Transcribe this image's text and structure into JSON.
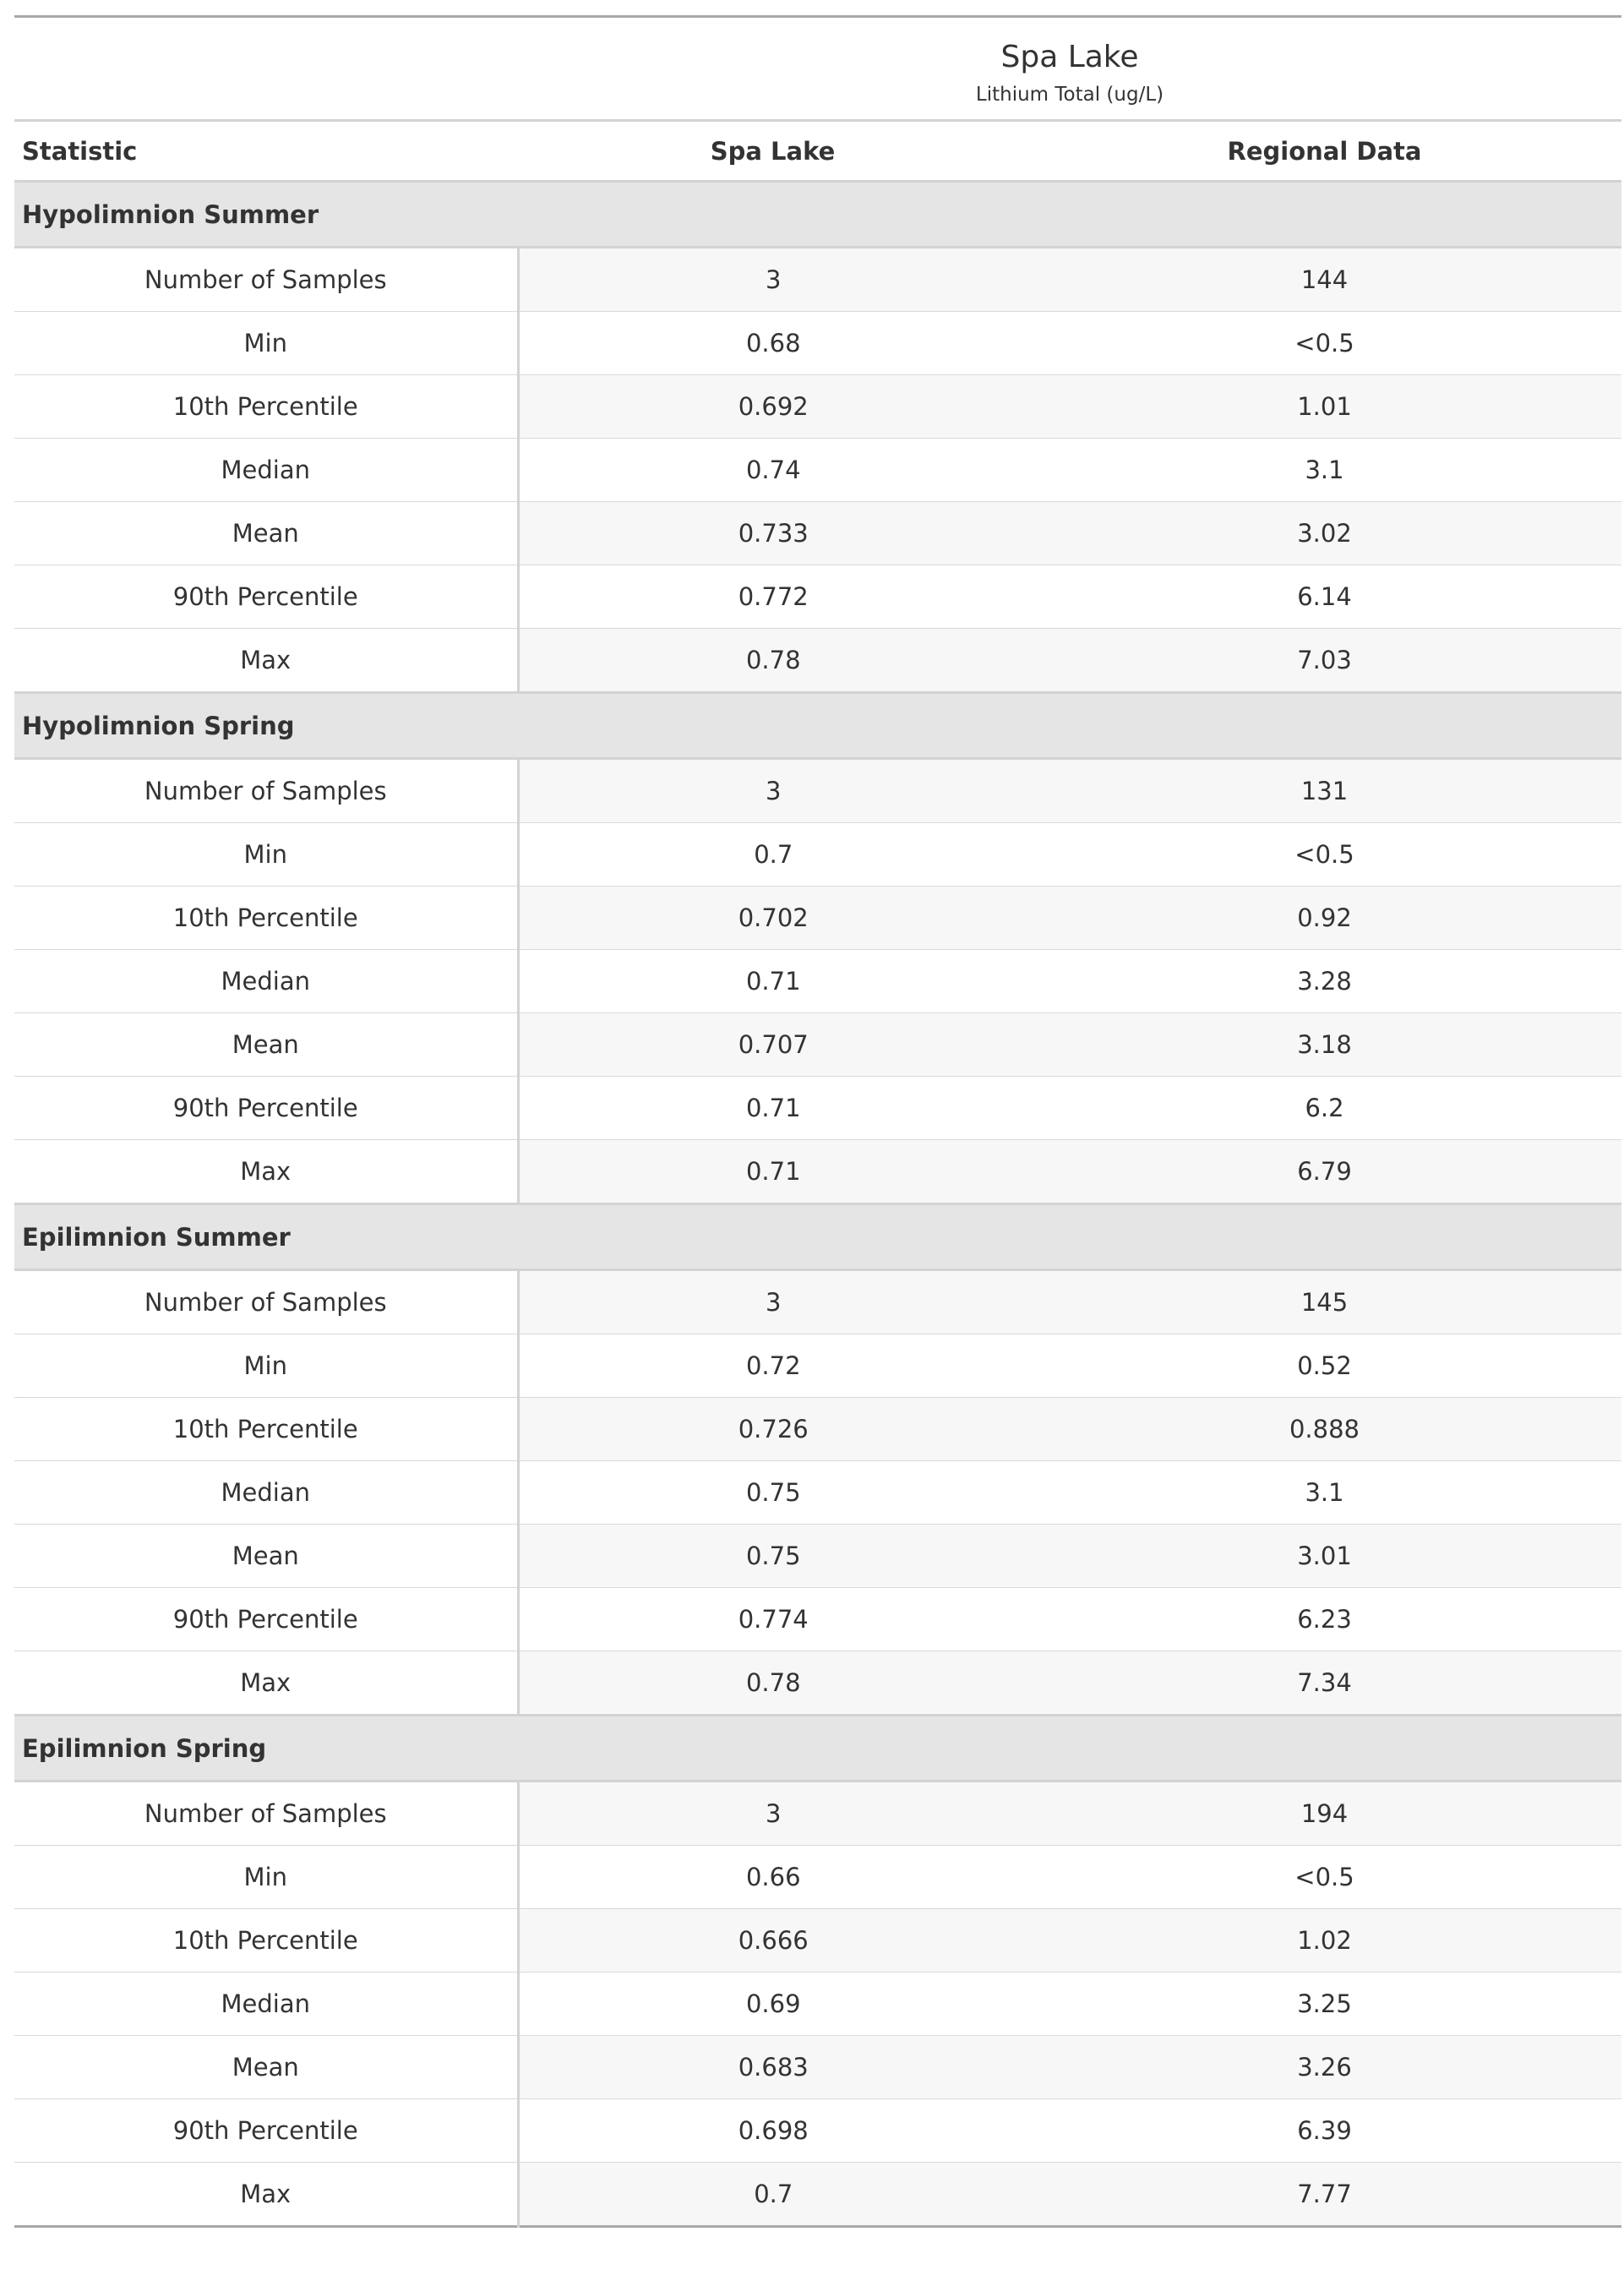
{
  "title": "Spa Lake",
  "subtitle": "Lithium Total (ug/L)",
  "columns": {
    "statistic": "Statistic",
    "lake": "Spa Lake",
    "regional": "Regional Data"
  },
  "groups": [
    {
      "name": "Hypolimnion Summer",
      "rows": [
        {
          "stat": "Number of Samples",
          "lake": "3",
          "regional": "144"
        },
        {
          "stat": "Min",
          "lake": "0.68",
          "regional": "<0.5"
        },
        {
          "stat": "10th Percentile",
          "lake": "0.692",
          "regional": "1.01"
        },
        {
          "stat": "Median",
          "lake": "0.74",
          "regional": "3.1"
        },
        {
          "stat": "Mean",
          "lake": "0.733",
          "regional": "3.02"
        },
        {
          "stat": "90th Percentile",
          "lake": "0.772",
          "regional": "6.14"
        },
        {
          "stat": "Max",
          "lake": "0.78",
          "regional": "7.03"
        }
      ]
    },
    {
      "name": "Hypolimnion Spring",
      "rows": [
        {
          "stat": "Number of Samples",
          "lake": "3",
          "regional": "131"
        },
        {
          "stat": "Min",
          "lake": "0.7",
          "regional": "<0.5"
        },
        {
          "stat": "10th Percentile",
          "lake": "0.702",
          "regional": "0.92"
        },
        {
          "stat": "Median",
          "lake": "0.71",
          "regional": "3.28"
        },
        {
          "stat": "Mean",
          "lake": "0.707",
          "regional": "3.18"
        },
        {
          "stat": "90th Percentile",
          "lake": "0.71",
          "regional": "6.2"
        },
        {
          "stat": "Max",
          "lake": "0.71",
          "regional": "6.79"
        }
      ]
    },
    {
      "name": "Epilimnion Summer",
      "rows": [
        {
          "stat": "Number of Samples",
          "lake": "3",
          "regional": "145"
        },
        {
          "stat": "Min",
          "lake": "0.72",
          "regional": "0.52"
        },
        {
          "stat": "10th Percentile",
          "lake": "0.726",
          "regional": "0.888"
        },
        {
          "stat": "Median",
          "lake": "0.75",
          "regional": "3.1"
        },
        {
          "stat": "Mean",
          "lake": "0.75",
          "regional": "3.01"
        },
        {
          "stat": "90th Percentile",
          "lake": "0.774",
          "regional": "6.23"
        },
        {
          "stat": "Max",
          "lake": "0.78",
          "regional": "7.34"
        }
      ]
    },
    {
      "name": "Epilimnion Spring",
      "rows": [
        {
          "stat": "Number of Samples",
          "lake": "3",
          "regional": "194"
        },
        {
          "stat": "Min",
          "lake": "0.66",
          "regional": "<0.5"
        },
        {
          "stat": "10th Percentile",
          "lake": "0.666",
          "regional": "1.02"
        },
        {
          "stat": "Median",
          "lake": "0.69",
          "regional": "3.25"
        },
        {
          "stat": "Mean",
          "lake": "0.683",
          "regional": "3.26"
        },
        {
          "stat": "90th Percentile",
          "lake": "0.698",
          "regional": "6.39"
        },
        {
          "stat": "Max",
          "lake": "0.7",
          "regional": "7.77"
        }
      ]
    }
  ]
}
